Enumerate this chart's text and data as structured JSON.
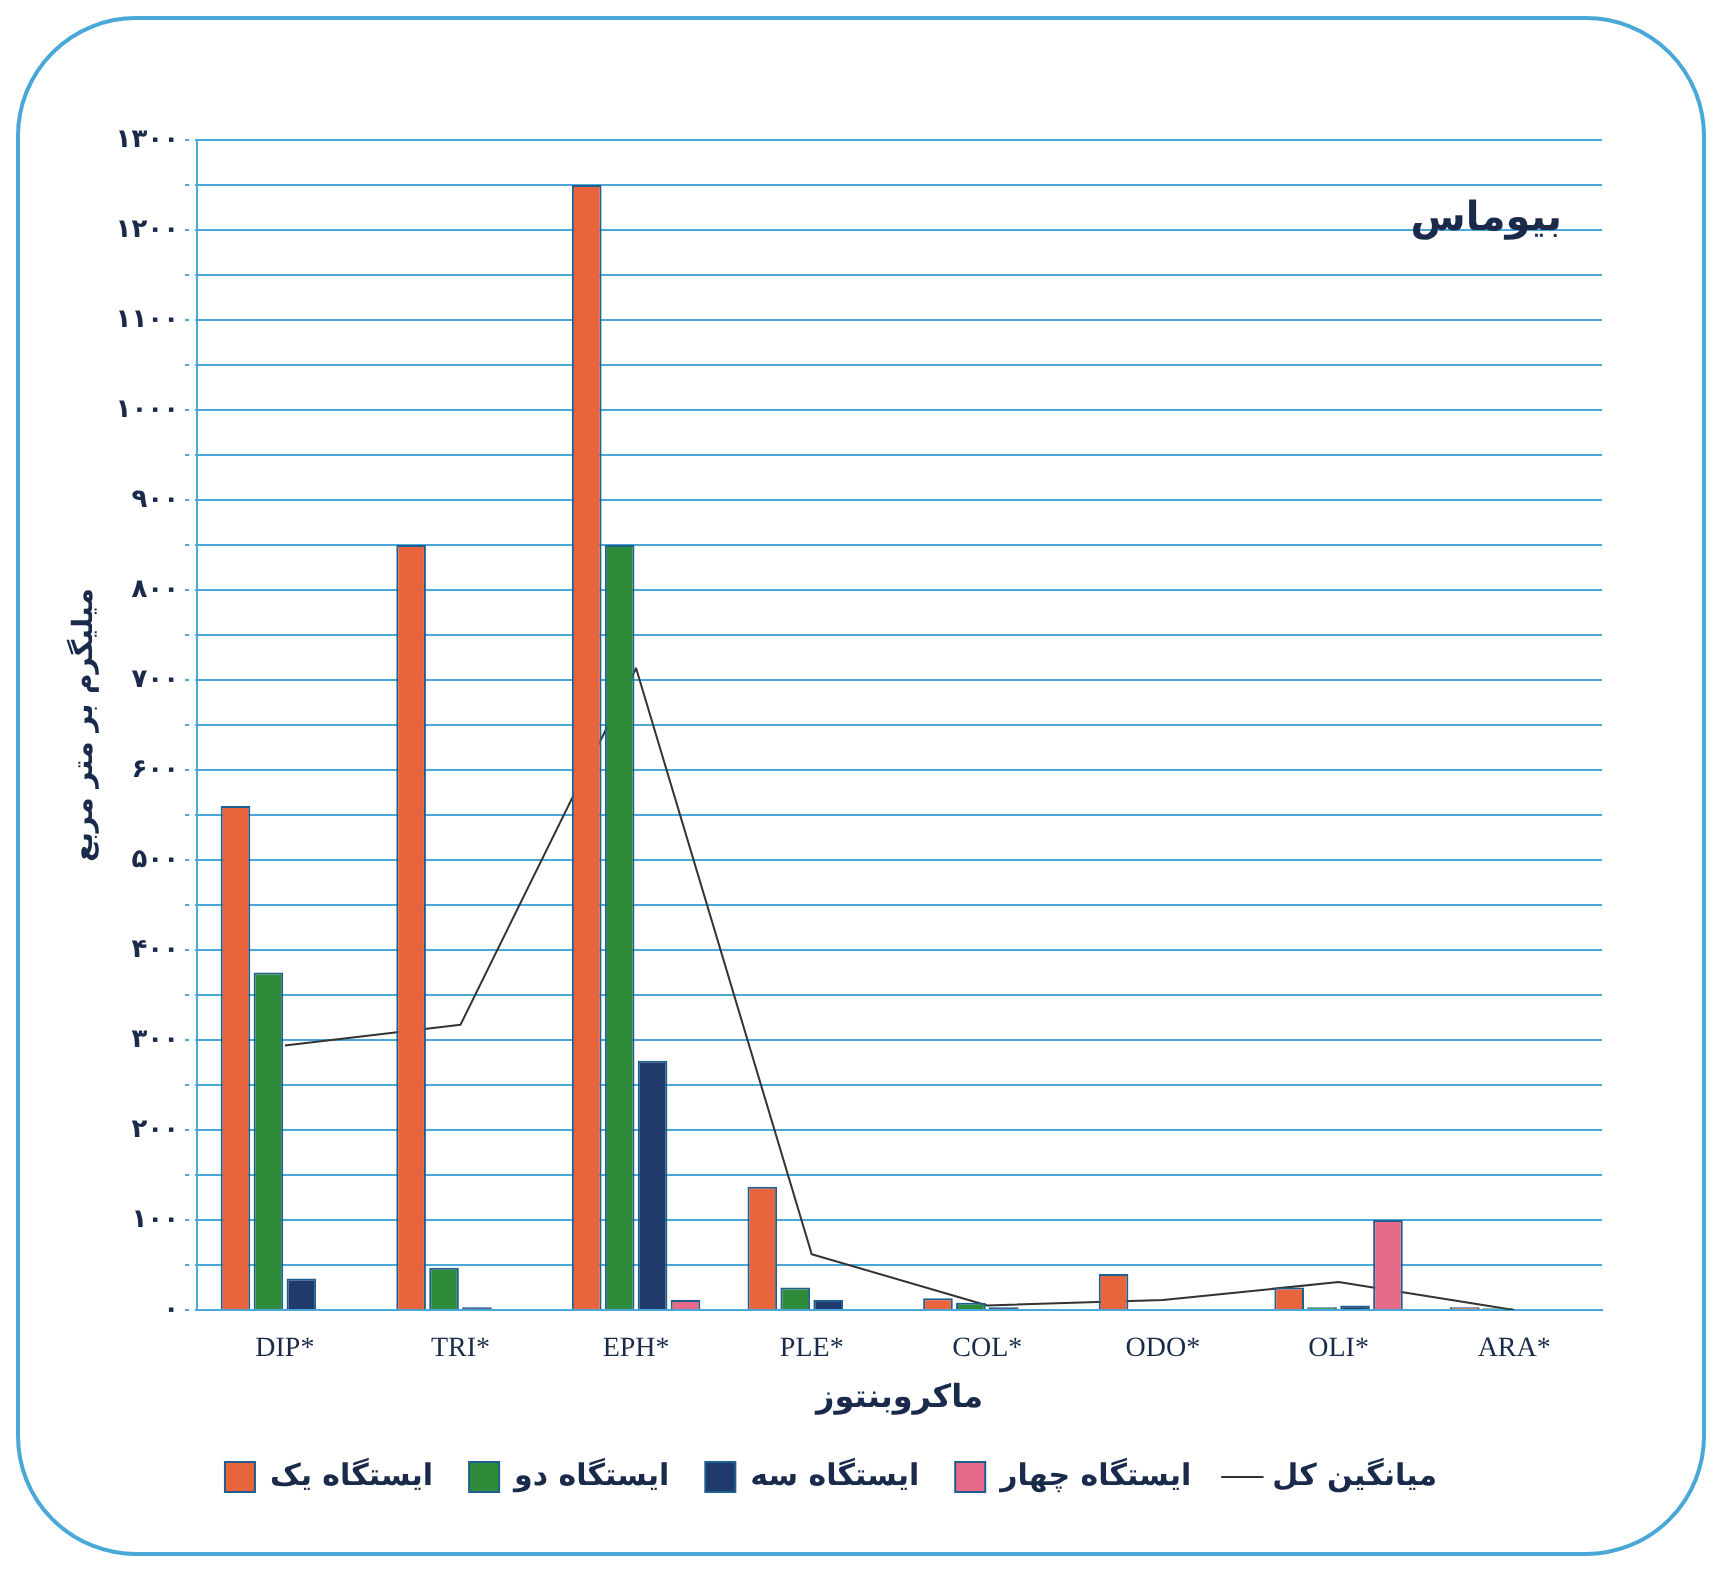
{
  "chart_data": {
    "type": "bar",
    "title": "بیوماس",
    "xlabel": "ماکروبنتوز",
    "ylabel": "میلیگرم بر متر مربع",
    "categories": [
      "DIP*",
      "TRI*",
      "EPH*",
      "PLE*",
      "COL*",
      "ODO*",
      "OLI*",
      "ARA*"
    ],
    "series": [
      {
        "name": "ایستگاه یک",
        "color": "#e8643c",
        "values": [
          560,
          850,
          1250,
          137,
          13,
          40,
          25,
          3
        ]
      },
      {
        "name": "ایستگاه دو",
        "color": "#2e8b3a",
        "values": [
          375,
          47,
          850,
          25,
          8,
          0,
          3,
          2
        ]
      },
      {
        "name": "ایستگاه سه",
        "color": "#1f3a6b",
        "values": [
          35,
          3,
          277,
          11,
          3,
          0,
          5,
          1
        ]
      },
      {
        "name": "ایستگاه چهار",
        "color": "#e86a8a",
        "values": [
          0,
          0,
          11,
          0,
          0,
          0,
          100,
          0
        ]
      },
      {
        "name": "میانگین کل",
        "type": "line",
        "color": "#333333",
        "values": [
          294,
          317,
          713,
          62,
          5,
          11,
          31,
          0
        ]
      }
    ],
    "ylim": [
      0,
      1300
    ],
    "yticks": [
      {
        "value": 0,
        "label": "۰"
      },
      {
        "value": 50,
        "label": null
      },
      {
        "value": 100,
        "label": "۱۰۰"
      },
      {
        "value": 150,
        "label": null
      },
      {
        "value": 200,
        "label": "۲۰۰"
      },
      {
        "value": 250,
        "label": null
      },
      {
        "value": 300,
        "label": "۳۰۰"
      },
      {
        "value": 350,
        "label": null
      },
      {
        "value": 400,
        "label": "۴۰۰"
      },
      {
        "value": 450,
        "label": null
      },
      {
        "value": 500,
        "label": "۵۰۰"
      },
      {
        "value": 550,
        "label": null
      },
      {
        "value": 600,
        "label": "۶۰۰"
      },
      {
        "value": 650,
        "label": null
      },
      {
        "value": 700,
        "label": "۷۰۰"
      },
      {
        "value": 750,
        "label": null
      },
      {
        "value": 800,
        "label": "۸۰۰"
      },
      {
        "value": 850,
        "label": null
      },
      {
        "value": 900,
        "label": "۹۰۰"
      },
      {
        "value": 950,
        "label": null
      },
      {
        "value": 1000,
        "label": "۱۰۰۰"
      },
      {
        "value": 1050,
        "label": null
      },
      {
        "value": 1100,
        "label": "۱۱۰۰"
      },
      {
        "value": 1150,
        "label": null
      },
      {
        "value": 1200,
        "label": "۱۲۰۰"
      },
      {
        "value": 1250,
        "label": null
      },
      {
        "value": 1300,
        "label": "۱۳۰۰"
      }
    ],
    "grid": "y",
    "legend": "bottom",
    "marker": "none",
    "line_style": "solid"
  }
}
